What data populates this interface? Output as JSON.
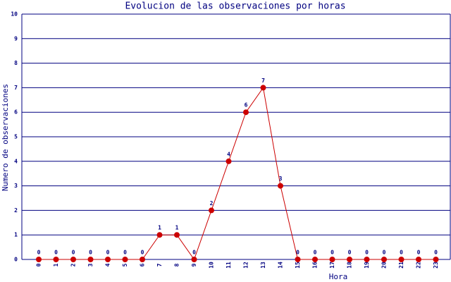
{
  "chart_data": {
    "type": "line",
    "title": "Evolucion de las observaciones por horas",
    "x_label": "Hora",
    "y_label": "Numero de observaciones",
    "categories": [
      "0",
      "1",
      "2",
      "3",
      "4",
      "5",
      "6",
      "7",
      "8",
      "9",
      "10",
      "11",
      "12",
      "13",
      "14",
      "15",
      "16",
      "17",
      "18",
      "19",
      "20",
      "21",
      "22",
      "23"
    ],
    "values": [
      0,
      0,
      0,
      0,
      0,
      0,
      0,
      1,
      1,
      0,
      2,
      4,
      6,
      7,
      3,
      0,
      0,
      0,
      0,
      0,
      0,
      0,
      0,
      0
    ],
    "color": "#cc0000",
    "grid_color": "#000080",
    "ylim": [
      0,
      10
    ],
    "yticks": [
      0,
      1,
      2,
      3,
      4,
      5,
      6,
      7,
      8,
      9,
      10
    ],
    "grid": true
  }
}
